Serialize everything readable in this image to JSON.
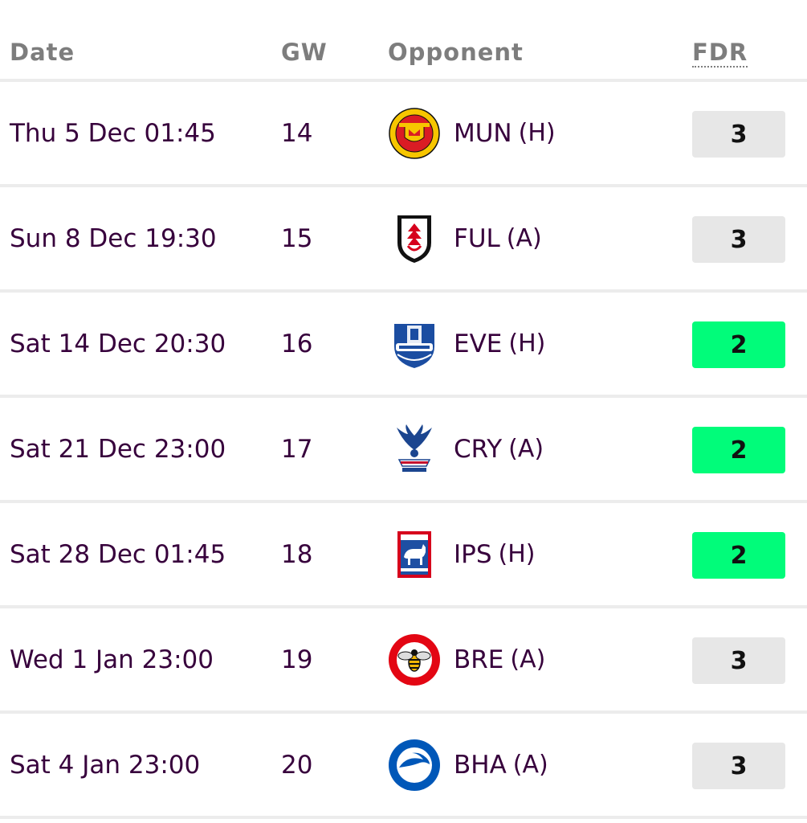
{
  "headers": {
    "date": "Date",
    "gw": "GW",
    "opponent": "Opponent",
    "fdr": "FDR"
  },
  "fdr_colors": {
    "2": "#01fc7a",
    "3": "#e7e7e7"
  },
  "fixtures": [
    {
      "date": "Thu 5 Dec 01:45",
      "gw": "14",
      "team": "MUN",
      "venue": "(H)",
      "fdr": "3",
      "crest": "manchester-united-crest-icon"
    },
    {
      "date": "Sun 8 Dec 19:30",
      "gw": "15",
      "team": "FUL",
      "venue": "(A)",
      "fdr": "3",
      "crest": "fulham-crest-icon"
    },
    {
      "date": "Sat 14 Dec 20:30",
      "gw": "16",
      "team": "EVE",
      "venue": "(H)",
      "fdr": "2",
      "crest": "everton-crest-icon"
    },
    {
      "date": "Sat 21 Dec 23:00",
      "gw": "17",
      "team": "CRY",
      "venue": "(A)",
      "fdr": "2",
      "crest": "crystal-palace-crest-icon"
    },
    {
      "date": "Sat 28 Dec 01:45",
      "gw": "18",
      "team": "IPS",
      "venue": "(H)",
      "fdr": "2",
      "crest": "ipswich-crest-icon"
    },
    {
      "date": "Wed 1 Jan 23:00",
      "gw": "19",
      "team": "BRE",
      "venue": "(A)",
      "fdr": "3",
      "crest": "brentford-crest-icon"
    },
    {
      "date": "Sat 4 Jan 23:00",
      "gw": "20",
      "team": "BHA",
      "venue": "(A)",
      "fdr": "3",
      "crest": "brighton-crest-icon"
    }
  ]
}
